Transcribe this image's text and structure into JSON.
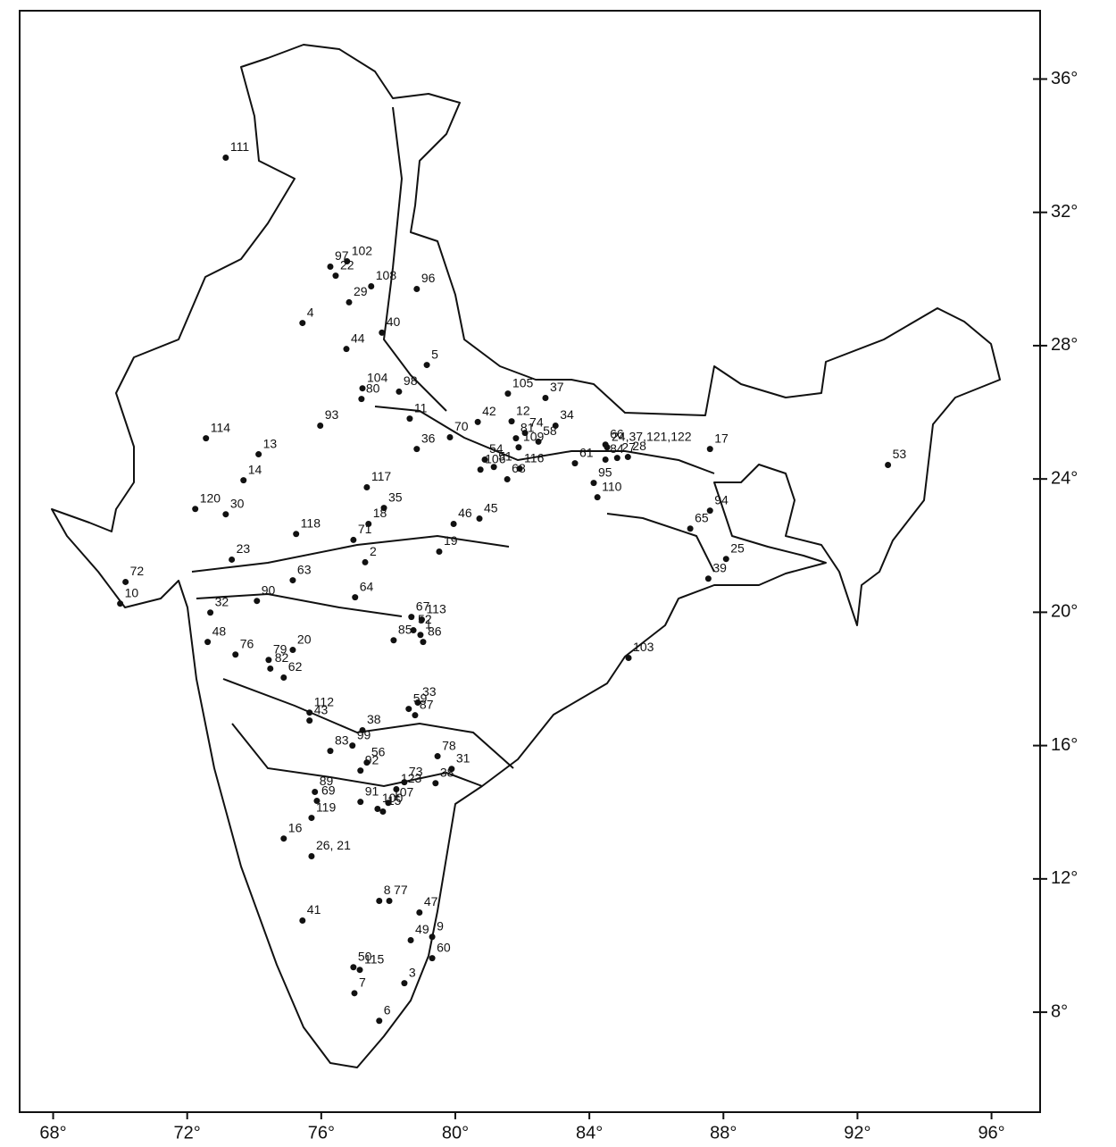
{
  "chart_data": {
    "type": "scatter",
    "xlim": [
      67,
      97.45
    ],
    "ylim": [
      5.0,
      38.05
    ],
    "xticks": [
      {
        "value": 68,
        "label": "68°"
      },
      {
        "value": 72,
        "label": "72°"
      },
      {
        "value": 76,
        "label": "76°"
      },
      {
        "value": 80,
        "label": "80°"
      },
      {
        "value": 84,
        "label": "84°"
      },
      {
        "value": 88,
        "label": "88°"
      },
      {
        "value": 92,
        "label": "92°"
      },
      {
        "value": 96,
        "label": "96°"
      }
    ],
    "yticks": [
      {
        "value": 8,
        "label": "8°"
      },
      {
        "value": 12,
        "label": "12°"
      },
      {
        "value": 16,
        "label": "16°"
      },
      {
        "value": 20,
        "label": "20°"
      },
      {
        "value": 24,
        "label": "24°"
      },
      {
        "value": 28,
        "label": "28°"
      },
      {
        "value": 32,
        "label": "32°"
      },
      {
        "value": 36,
        "label": "36°"
      }
    ],
    "color": "#111111",
    "point_labels": [
      "111",
      "102",
      "97",
      "22",
      "108",
      "29",
      "96",
      "4",
      "40",
      "44",
      "5",
      "104",
      "80",
      "98",
      "93",
      "11",
      "70",
      "42",
      "12",
      "74",
      "81",
      "58",
      "37",
      "34",
      "105",
      "36",
      "54",
      "51",
      "68",
      "116",
      "66",
      "61",
      "84",
      "95",
      "28",
      "27",
      "110",
      "24,37,121,122",
      "109",
      "106",
      "17",
      "53",
      "114",
      "13",
      "14",
      "120",
      "30",
      "117",
      "35",
      "18",
      "45",
      "46",
      "118",
      "71",
      "19",
      "23",
      "2",
      "63",
      "72",
      "10",
      "64",
      "67",
      "113",
      "52",
      "1",
      "85",
      "86",
      "32",
      "90",
      "48",
      "20",
      "79",
      "76",
      "82",
      "62",
      "59",
      "33",
      "87",
      "112",
      "38",
      "43",
      "99",
      "83",
      "56",
      "92",
      "73",
      "78",
      "31",
      "38",
      "123",
      "89",
      "69",
      "91",
      "107",
      "15",
      "100",
      "119",
      "16",
      "26, 21",
      "8",
      "77",
      "47",
      "41",
      "49",
      "9",
      "50",
      "115",
      "60",
      "3",
      "7",
      "6",
      "39",
      "25",
      "94",
      "65",
      "103"
    ],
    "x": [
      73.15,
      76.77,
      76.27,
      76.43,
      77.49,
      76.83,
      78.85,
      75.44,
      77.81,
      76.75,
      79.15,
      77.23,
      77.2,
      78.32,
      75.97,
      78.64,
      79.84,
      80.67,
      81.68,
      82.08,
      81.81,
      82.48,
      82.69,
      82.99,
      81.57,
      78.85,
      80.88,
      81.15,
      81.55,
      81.92,
      84.48,
      83.57,
      84.48,
      84.13,
      85.15,
      84.83,
      84.24,
      84.53,
      81.89,
      80.75,
      87.6,
      92.91,
      72.56,
      74.13,
      73.68,
      72.24,
      73.15,
      77.36,
      77.87,
      77.41,
      80.72,
      79.95,
      75.25,
      76.96,
      79.52,
      73.33,
      77.31,
      75.15,
      70.16,
      70.0,
      77.01,
      78.69,
      79.0,
      78.75,
      78.96,
      78.16,
      79.04,
      72.69,
      74.08,
      72.61,
      75.15,
      74.43,
      73.44,
      74.48,
      74.88,
      78.61,
      78.88,
      78.8,
      75.65,
      77.23,
      75.65,
      76.93,
      76.27,
      77.36,
      77.17,
      78.48,
      79.47,
      79.89,
      79.41,
      78.24,
      75.81,
      75.87,
      77.17,
      78.0,
      77.84,
      77.68,
      75.71,
      74.88,
      75.71,
      77.73,
      78.03,
      78.93,
      75.44,
      78.67,
      79.31,
      76.96,
      77.15,
      79.31,
      78.48,
      76.99,
      77.73,
      87.55,
      88.08,
      87.6,
      87.01,
      85.17
    ],
    "values": [
      33.64,
      30.53,
      30.37,
      30.1,
      29.78,
      29.3,
      29.7,
      28.68,
      28.39,
      27.9,
      27.42,
      26.72,
      26.4,
      26.62,
      25.6,
      25.81,
      25.25,
      25.71,
      25.73,
      25.38,
      25.22,
      25.12,
      26.43,
      25.6,
      26.56,
      24.9,
      24.58,
      24.36,
      23.99,
      24.31,
      25.03,
      24.47,
      24.58,
      23.88,
      24.66,
      24.63,
      23.45,
      24.95,
      24.95,
      24.28,
      24.9,
      24.42,
      25.22,
      24.74,
      23.96,
      23.1,
      22.94,
      23.75,
      23.13,
      22.65,
      22.81,
      22.65,
      22.35,
      22.17,
      21.82,
      21.58,
      21.5,
      20.96,
      20.91,
      20.26,
      20.45,
      19.86,
      19.78,
      19.46,
      19.32,
      19.16,
      19.11,
      19.99,
      20.34,
      19.11,
      18.87,
      18.57,
      18.73,
      18.31,
      18.04,
      17.1,
      17.29,
      16.91,
      16.99,
      16.46,
      16.75,
      16.0,
      15.84,
      15.49,
      15.25,
      14.9,
      15.68,
      15.3,
      14.87,
      14.69,
      14.61,
      14.34,
      14.31,
      14.28,
      14.02,
      14.1,
      13.83,
      13.21,
      12.68,
      11.34,
      11.34,
      10.99,
      10.75,
      10.16,
      10.26,
      9.35,
      9.27,
      9.62,
      8.87,
      8.57,
      7.74,
      21.01,
      21.6,
      23.05,
      22.51,
      18.63
    ]
  }
}
